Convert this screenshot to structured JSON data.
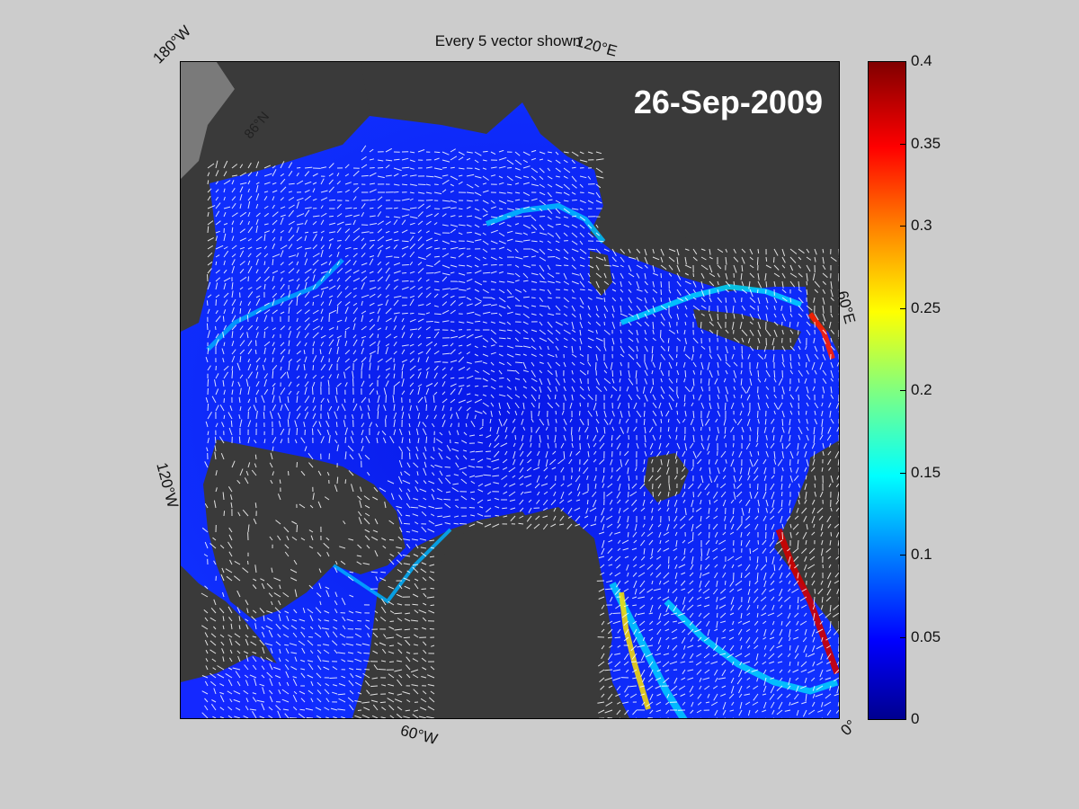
{
  "figure": {
    "title": "Every 5 vector shown",
    "date": "26-Sep-2009"
  },
  "map_labels": {
    "lon_180w": "180°W",
    "lon_120e": "120°E",
    "lon_60e": "60°E",
    "lon_120w": "120°W",
    "lon_60w": "60°W",
    "lon_0": "0°",
    "lat_86n": "86°N"
  },
  "colorbar": {
    "min": 0,
    "max": 0.4,
    "colormap": "jet",
    "ticks": [
      "0.4",
      "0.35",
      "0.3",
      "0.25",
      "0.2",
      "0.15",
      "0.1",
      "0.05",
      "0"
    ]
  },
  "colors": {
    "background": "#cccccc",
    "land": "#3a3a3a",
    "ocean_outside": "#7a7a7a",
    "ice_low": "#0a1aff",
    "ice_mid": "#00c8ff",
    "ice_high": "#ffd000",
    "ice_max": "#c00000",
    "vector": "#ffffff"
  }
}
